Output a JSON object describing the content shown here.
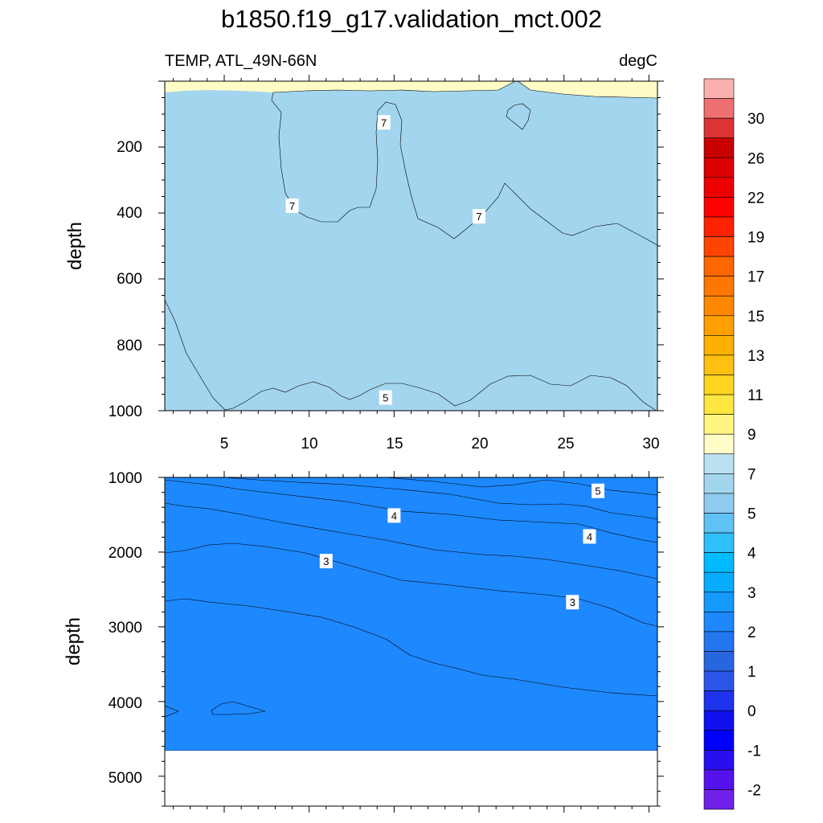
{
  "title": "b1850.f19_g17.validation_mct.002",
  "chart_data": {
    "type": "contour",
    "title": "b1850.f19_g17.validation_mct.002",
    "variable": "TEMP, ATL_49N-66N",
    "units": "degC",
    "colorbar": {
      "tick_labels": [
        "30",
        "26",
        "22",
        "19",
        "17",
        "15",
        "13",
        "11",
        "9",
        "7",
        "5",
        "4",
        "3",
        "2",
        "1",
        "0",
        "-1",
        "-2"
      ],
      "colors": [
        "#fbb0b0",
        "#ee7070",
        "#dd3333",
        "#c80000",
        "#dd0000",
        "#ee0000",
        "#ff0000",
        "#ff2200",
        "#ff4400",
        "#ff6600",
        "#ff7700",
        "#ff8800",
        "#ffa000",
        "#ffb000",
        "#ffc010",
        "#ffd520",
        "#ffe640",
        "#fff580",
        "#fffcc8",
        "#bbe1f3",
        "#a3d5ef",
        "#8ecbee",
        "#60c2f4",
        "#30bff8",
        "#00bbff",
        "#08acff",
        "#1499ff",
        "#1e88ff",
        "#2276ee",
        "#2866e0",
        "#2a55e8",
        "#1d33ee",
        "#1010ee",
        "#0000ff",
        "#2810ee",
        "#5512ee",
        "#7020e8"
      ]
    },
    "panels": [
      {
        "name": "upper",
        "x_ticks": [
          "5",
          "10",
          "15",
          "20",
          "25",
          "30"
        ],
        "xlim": [
          1.5,
          30.5
        ],
        "ylim": [
          0,
          1000
        ],
        "y_ticks": [
          "200",
          "400",
          "600",
          "800",
          "1000"
        ],
        "ylabel": "depth",
        "contour_labels": [
          {
            "text": "7",
            "x": 14.4,
            "depth": 125
          },
          {
            "text": "7",
            "x": 9.0,
            "depth": 378
          },
          {
            "text": "7",
            "x": 20.0,
            "depth": 410
          },
          {
            "text": "5",
            "x": 14.5,
            "depth": 960
          }
        ]
      },
      {
        "name": "lower",
        "x_ticks": [
          "5",
          "10",
          "15",
          "20",
          "25",
          "30"
        ],
        "xlim": [
          1.5,
          30.5
        ],
        "ylim": [
          1000,
          5400
        ],
        "y_ticks": [
          "1000",
          "2000",
          "3000",
          "4000",
          "5000"
        ],
        "ylabel": "depth",
        "contour_labels": [
          {
            "text": "5",
            "x": 27.0,
            "depth": 1180
          },
          {
            "text": "4",
            "x": 15.0,
            "depth": 1510
          },
          {
            "text": "4",
            "x": 26.5,
            "depth": 1790
          },
          {
            "text": "3",
            "x": 11.0,
            "depth": 2120
          },
          {
            "text": "3",
            "x": 25.5,
            "depth": 2670
          }
        ]
      }
    ]
  }
}
